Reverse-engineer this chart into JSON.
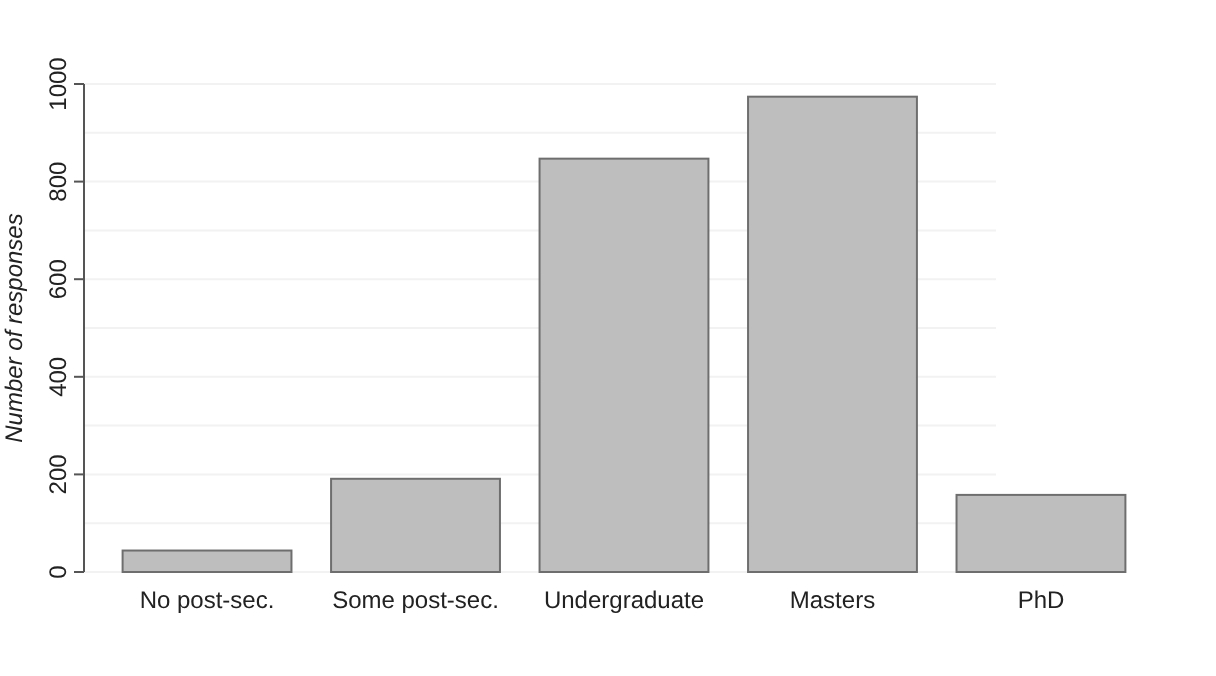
{
  "chart_data": {
    "type": "bar",
    "ylabel": "Number of responses",
    "categories": [
      "No post-sec.",
      "Some post-sec.",
      "Undergraduate",
      "Masters",
      "PhD"
    ],
    "values": [
      44,
      191,
      847,
      974,
      158
    ],
    "color": "#bebebe",
    "ylim": [
      0,
      1000
    ],
    "yticks": [
      0,
      {
        "value": 100,
        "label": null
      },
      200,
      {
        "value": 300,
        "label": null
      },
      400,
      {
        "value": 500,
        "label": null
      },
      600,
      {
        "value": 700,
        "label": null
      },
      800,
      {
        "value": 900,
        "label": null
      },
      1000
    ],
    "grid": true
  }
}
